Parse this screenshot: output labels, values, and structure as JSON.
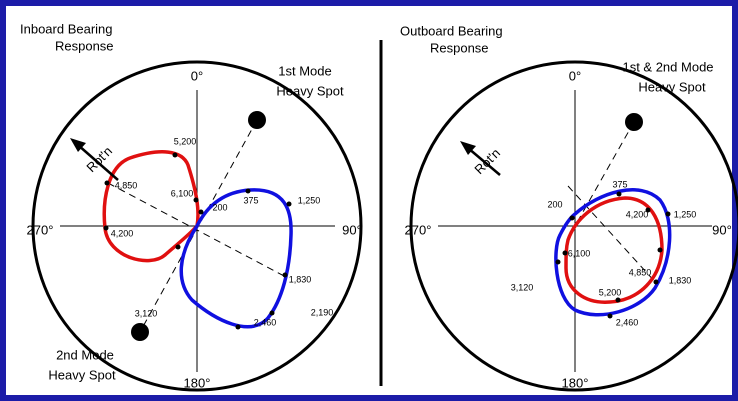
{
  "left": {
    "title": [
      "Inboard Bearing",
      "Response"
    ],
    "angles": {
      "top": "0°",
      "right": "90°",
      "bottom": "180°",
      "left": "270°"
    },
    "heavy_spot_1": [
      "1st Mode",
      "Heavy Spot"
    ],
    "heavy_spot_2": [
      "2nd Mode",
      "Heavy Spot"
    ],
    "rotation": "Rot'n",
    "points": [
      "5,200",
      "4,850",
      "6,100",
      "200",
      "375",
      "1,250",
      "4,200",
      "3,120",
      "1,830",
      "2,190",
      "2,460"
    ]
  },
  "right": {
    "title": [
      "Outboard Bearing",
      "Response"
    ],
    "angles": {
      "top": "0°",
      "right": "90°",
      "bottom": "180°",
      "left": "270°"
    },
    "heavy_spot_1": [
      "1st & 2nd Mode",
      "Heavy Spot"
    ],
    "rotation": "Rot'n",
    "points": [
      "375",
      "200",
      "4,200",
      "1,250",
      "6,100",
      "3,120",
      "4,850",
      "1,830",
      "5,200",
      "2,460"
    ]
  }
}
